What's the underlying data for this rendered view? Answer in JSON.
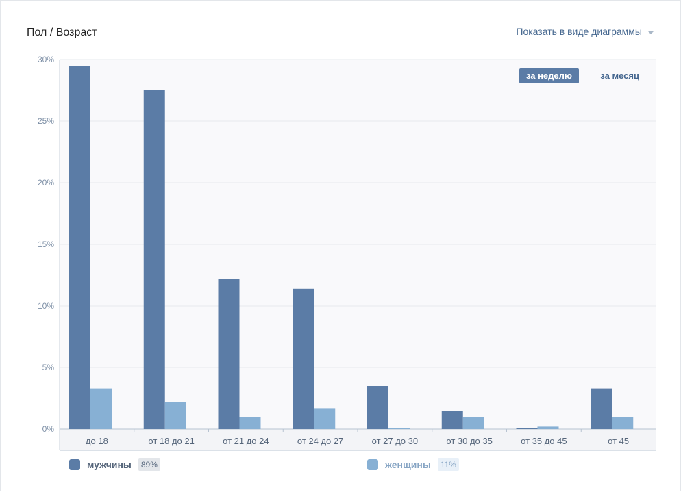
{
  "header": {
    "title": "Пол / Возраст",
    "view_toggle_label": "Показать в виде диаграммы"
  },
  "period": {
    "week_label": "за неделю",
    "month_label": "за месяц"
  },
  "colors": {
    "male": "#5b7ca6",
    "female": "#87b0d4",
    "plot_bg": "#f9f9fb",
    "grid": "#e6e9ed",
    "axis_text": "#7d8fa6"
  },
  "legend": [
    {
      "name": "мужчины",
      "pct": "89%"
    },
    {
      "name": "женщины",
      "pct": "11%"
    }
  ],
  "chart_data": {
    "type": "bar",
    "categories": [
      "до 18",
      "от 18 до 21",
      "от 21 до 24",
      "от 24 до 27",
      "от 27 до 30",
      "от 30 до 35",
      "от 35 до 45",
      "от 45"
    ],
    "series": [
      {
        "name": "мужчины",
        "values": [
          29.5,
          27.5,
          12.2,
          11.4,
          3.5,
          1.5,
          0.1,
          3.3
        ]
      },
      {
        "name": "женщины",
        "values": [
          3.3,
          2.2,
          1.0,
          1.7,
          0.1,
          1.0,
          0.2,
          1.0
        ]
      }
    ],
    "yticks": [
      "0%",
      "5%",
      "10%",
      "15%",
      "20%",
      "25%",
      "30%"
    ],
    "ytick_values": [
      0,
      5,
      10,
      15,
      20,
      25,
      30
    ],
    "ylim": [
      0,
      30
    ],
    "grid": true,
    "legend_position": "bottom"
  }
}
